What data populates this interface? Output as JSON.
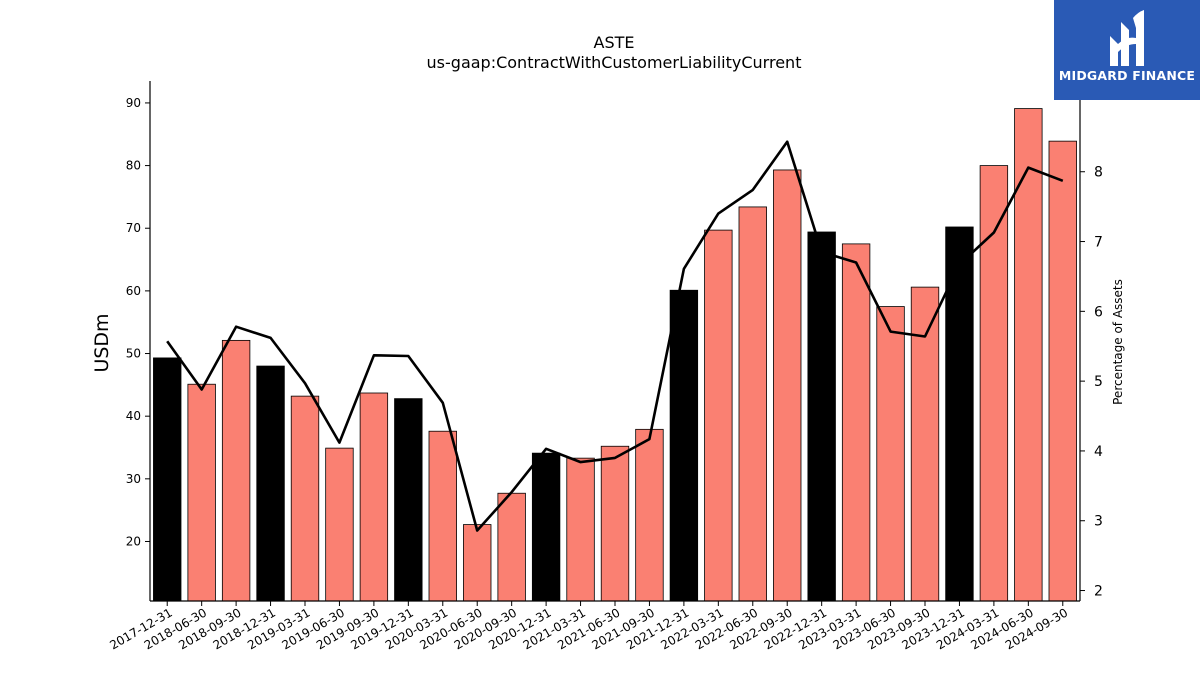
{
  "chart_data": {
    "type": "bar",
    "title": "ASTE",
    "subtitle": "us-gaap:ContractWithCustomerLiabilityCurrent",
    "ylabel": "USDm",
    "y2label": "Percentage of Assets",
    "ylim": [
      10.5,
      93.5
    ],
    "y2lim": [
      1.85,
      9.3
    ],
    "yticks": [
      20,
      30,
      40,
      50,
      60,
      70,
      80,
      90
    ],
    "y2ticks": [
      2,
      3,
      4,
      5,
      6,
      7,
      8
    ],
    "categories": [
      "2017-12-31",
      "2018-06-30",
      "2018-09-30",
      "2018-12-31",
      "2019-03-31",
      "2019-06-30",
      "2019-09-30",
      "2019-12-31",
      "2020-03-31",
      "2020-06-30",
      "2020-09-30",
      "2020-12-31",
      "2021-03-31",
      "2021-06-30",
      "2021-09-30",
      "2021-12-31",
      "2022-03-31",
      "2022-06-30",
      "2022-09-30",
      "2022-12-31",
      "2023-03-31",
      "2023-06-30",
      "2023-09-30",
      "2023-12-31",
      "2024-03-31",
      "2024-06-30",
      "2024-09-30"
    ],
    "values": [
      49.3,
      45.1,
      52.1,
      48.0,
      43.2,
      34.9,
      43.7,
      42.8,
      37.6,
      22.7,
      27.7,
      34.1,
      33.3,
      35.2,
      37.9,
      60.1,
      69.7,
      73.4,
      79.3,
      69.4,
      67.5,
      57.5,
      60.6,
      70.2,
      80.0,
      89.1,
      83.9
    ],
    "bar_colors": [
      "#000000",
      "#fa8072",
      "#fa8072",
      "#000000",
      "#fa8072",
      "#fa8072",
      "#fa8072",
      "#000000",
      "#fa8072",
      "#fa8072",
      "#fa8072",
      "#000000",
      "#fa8072",
      "#fa8072",
      "#fa8072",
      "#000000",
      "#fa8072",
      "#fa8072",
      "#fa8072",
      "#000000",
      "#fa8072",
      "#fa8072",
      "#fa8072",
      "#000000",
      "#fa8072",
      "#fa8072",
      "#fa8072"
    ],
    "pct_assets": [
      5.57,
      4.88,
      5.78,
      5.62,
      4.97,
      4.12,
      5.37,
      5.36,
      4.69,
      2.86,
      3.41,
      4.03,
      3.84,
      3.9,
      4.17,
      6.61,
      7.4,
      7.74,
      8.43,
      6.85,
      6.7,
      5.71,
      5.64,
      6.67,
      7.13,
      8.06,
      7.87
    ],
    "line_color": "#000000",
    "grid": false
  },
  "logo": {
    "text": "MIDGARD FINANCE",
    "background": "#2a5ab5"
  }
}
